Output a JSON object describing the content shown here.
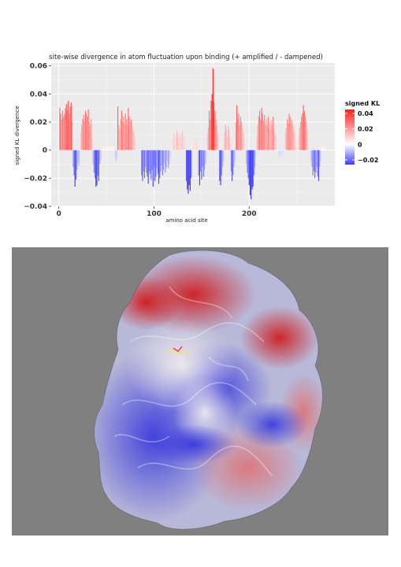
{
  "chart_data": {
    "type": "bar",
    "title": "site-wise divergence in atom fluctuation upon binding (+ amplified / - dampened)",
    "xlabel": "amino acid site",
    "ylabel": "signed KL divergence",
    "xlim": [
      -8,
      290
    ],
    "ylim": [
      -0.04,
      0.062
    ],
    "xticks": [
      "0",
      "100",
      "200"
    ],
    "xtick_values": [
      0,
      100,
      200
    ],
    "yticks": [
      "0.06",
      "0.04",
      "0.02",
      "0",
      "−0.02",
      "−0.04"
    ],
    "ytick_values": [
      0.06,
      0.04,
      0.02,
      0,
      -0.02,
      -0.04
    ],
    "grid": true,
    "legend": {
      "title": "signed KL",
      "position": "right",
      "ticks": [
        "0.04",
        "0.02",
        "0",
        "−0.02"
      ],
      "tick_values": [
        0.04,
        0.02,
        0,
        -0.02
      ],
      "range": [
        -0.026,
        0.045
      ],
      "colors": {
        "low": "#3b3bff",
        "mid": "#ffffff",
        "high": "#ff1e1e"
      }
    },
    "segments": [
      {
        "start": 1,
        "end": 14,
        "sign": 1,
        "values": [
          0.03,
          0.026,
          0.022,
          0.028,
          0.024,
          0.026,
          0.03,
          0.033,
          0.028,
          0.035,
          0.026,
          0.031,
          0.034,
          0.02
        ]
      },
      {
        "start": 15,
        "end": 22,
        "sign": -1,
        "values": [
          0.012,
          0.018,
          0.026,
          0.021,
          0.014,
          0.009,
          0.011,
          0.005
        ]
      },
      {
        "start": 23,
        "end": 35,
        "sign": 1,
        "values": [
          0.012,
          0.018,
          0.022,
          0.025,
          0.021,
          0.028,
          0.026,
          0.024,
          0.029,
          0.02,
          0.018,
          0.022,
          0.01
        ]
      },
      {
        "start": 36,
        "end": 45,
        "sign": -1,
        "values": [
          0.01,
          0.016,
          0.02,
          0.026,
          0.025,
          0.018,
          0.022,
          0.01,
          0.008,
          0.004
        ]
      },
      {
        "start": 46,
        "end": 58,
        "sign": 1,
        "values": [
          0.003,
          0.002,
          0.004,
          0.003,
          0.002,
          0.003,
          0.002,
          0.004,
          0.003,
          0.002,
          0.003,
          0.002,
          0.003
        ]
      },
      {
        "start": 59,
        "end": 61,
        "sign": -1,
        "values": [
          0.005,
          0.008,
          0.006
        ]
      },
      {
        "start": 62,
        "end": 80,
        "sign": 1,
        "values": [
          0.031,
          0.018,
          0.015,
          0.022,
          0.028,
          0.02,
          0.024,
          0.019,
          0.026,
          0.022,
          0.018,
          0.03,
          0.024,
          0.02,
          0.022,
          0.018,
          0.015,
          0.012,
          0.01
        ]
      },
      {
        "start": 81,
        "end": 86,
        "sign": -1,
        "values": [
          0.003,
          0.004,
          0.002,
          0.003,
          0.004,
          0.002
        ]
      },
      {
        "start": 87,
        "end": 118,
        "sign": -1,
        "values": [
          0.018,
          0.022,
          0.015,
          0.02,
          0.012,
          0.016,
          0.019,
          0.024,
          0.015,
          0.017,
          0.021,
          0.014,
          0.026,
          0.012,
          0.022,
          0.019,
          0.013,
          0.017,
          0.024,
          0.02,
          0.015,
          0.011,
          0.018,
          0.014,
          0.009,
          0.016,
          0.012,
          0.008,
          0.013,
          0.01,
          0.006,
          0.004
        ]
      },
      {
        "start": 119,
        "end": 133,
        "sign": 1,
        "values": [
          0.004,
          0.008,
          0.012,
          0.006,
          0.01,
          0.014,
          0.009,
          0.011,
          0.007,
          0.012,
          0.008,
          0.014,
          0.006,
          0.01,
          0.005
        ]
      },
      {
        "start": 134,
        "end": 139,
        "sign": -1,
        "values": [
          0.022,
          0.028,
          0.031,
          0.025,
          0.029,
          0.02
        ]
      },
      {
        "start": 140,
        "end": 146,
        "sign": 1,
        "values": [
          0.004,
          0.008,
          0.005,
          0.007,
          0.006,
          0.009,
          0.005
        ]
      },
      {
        "start": 147,
        "end": 155,
        "sign": -1,
        "values": [
          0.018,
          0.025,
          0.015,
          0.021,
          0.012,
          0.019,
          0.014,
          0.01,
          0.006
        ]
      },
      {
        "start": 156,
        "end": 168,
        "sign": 1,
        "values": [
          0.012,
          0.016,
          0.028,
          0.022,
          0.035,
          0.04,
          0.058,
          0.034,
          0.028,
          0.022,
          0.018,
          0.012,
          0.008
        ]
      },
      {
        "start": 169,
        "end": 173,
        "sign": -1,
        "values": [
          0.022,
          0.025,
          0.018,
          0.012,
          0.008
        ]
      },
      {
        "start": 174,
        "end": 180,
        "sign": 1,
        "values": [
          0.012,
          0.018,
          0.015,
          0.01,
          0.017,
          0.014,
          0.009
        ]
      },
      {
        "start": 181,
        "end": 185,
        "sign": -1,
        "values": [
          0.015,
          0.022,
          0.018,
          0.012,
          0.008
        ]
      },
      {
        "start": 186,
        "end": 196,
        "sign": 1,
        "values": [
          0.02,
          0.032,
          0.022,
          0.026,
          0.018,
          0.024,
          0.02,
          0.016,
          0.012,
          0.008,
          0.005
        ]
      },
      {
        "start": 197,
        "end": 207,
        "sign": -1,
        "values": [
          0.01,
          0.016,
          0.02,
          0.025,
          0.032,
          0.035,
          0.028,
          0.026,
          0.018,
          0.012,
          0.006
        ]
      },
      {
        "start": 208,
        "end": 230,
        "sign": 1,
        "values": [
          0.01,
          0.018,
          0.024,
          0.028,
          0.022,
          0.03,
          0.026,
          0.021,
          0.025,
          0.018,
          0.022,
          0.017,
          0.024,
          0.02,
          0.015,
          0.021,
          0.018,
          0.024,
          0.016,
          0.012,
          0.01,
          0.006,
          0.004
        ]
      },
      {
        "start": 231,
        "end": 237,
        "sign": -1,
        "values": [
          0.004,
          0.006,
          0.003,
          0.005,
          0.004,
          0.003,
          0.002
        ]
      },
      {
        "start": 238,
        "end": 261,
        "sign": 1,
        "values": [
          0.012,
          0.016,
          0.022,
          0.019,
          0.026,
          0.024,
          0.018,
          0.021,
          0.017,
          0.014,
          0.012,
          0.008,
          0.004,
          0.006,
          0.01,
          0.016,
          0.02,
          0.024,
          0.026,
          0.032,
          0.028,
          0.024,
          0.02,
          0.014
        ]
      },
      {
        "start": 262,
        "end": 264,
        "sign": -1,
        "values": [
          0.003,
          0.004,
          0.002
        ]
      },
      {
        "start": 265,
        "end": 275,
        "sign": -1,
        "values": [
          0.008,
          0.012,
          0.018,
          0.015,
          0.02,
          0.016,
          0.012,
          0.019,
          0.022,
          0.012,
          0.008
        ]
      },
      {
        "start": 276,
        "end": 280,
        "sign": 1,
        "values": [
          0.003,
          0.002,
          0.003,
          0.002,
          0.001
        ]
      }
    ]
  },
  "protein_image": {
    "background": "#808080"
  }
}
